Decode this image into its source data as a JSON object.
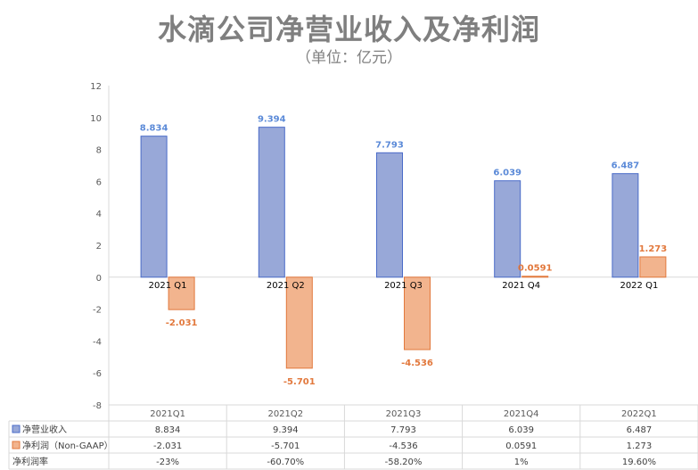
{
  "title": "水滴公司净营业收入及净利润",
  "subtitle": "（单位：亿元）",
  "colors": {
    "revenue_fill": "#98a8d8",
    "revenue_stroke": "#4a6bc8",
    "revenue_label": "#5b8ad8",
    "profit_fill": "#f2b48e",
    "profit_stroke": "#e2783c",
    "profit_label": "#e2783c"
  },
  "chart_data": {
    "type": "bar",
    "categories": [
      "2021 Q1",
      "2021 Q2",
      "2021 Q3",
      "2021 Q4",
      "2022 Q1"
    ],
    "series": [
      {
        "name": "净营业收入",
        "values": [
          8.834,
          9.394,
          7.793,
          6.039,
          6.487
        ],
        "labels": [
          "8.834",
          "9.394",
          "7.793",
          "6.039",
          "6.487"
        ]
      },
      {
        "name": "净利润（Non-GAAP）",
        "values": [
          -2.031,
          -5.701,
          -4.536,
          0.0591,
          1.273
        ],
        "labels": [
          "-2.031",
          "-5.701",
          "-4.536",
          "0.0591",
          "1.273"
        ]
      }
    ],
    "ylim": [
      -8,
      12
    ],
    "yticks": [
      12,
      10,
      8,
      6,
      4,
      2,
      0,
      -2,
      -4,
      -6,
      -8
    ],
    "grid": false,
    "legend": "data-table",
    "table": {
      "headers": [
        "2021Q1",
        "2021Q2",
        "2021Q3",
        "2021Q4",
        "2022Q1"
      ],
      "rows": [
        {
          "name": "净营业收入",
          "cells": [
            "8.834",
            "9.394",
            "7.793",
            "6.039",
            "6.487"
          ]
        },
        {
          "name": "净利润（Non-GAAP）",
          "cells": [
            "-2.031",
            "-5.701",
            "-4.536",
            "0.0591",
            "1.273"
          ]
        },
        {
          "name": "净利润率",
          "cells": [
            "-23%",
            "-60.70%",
            "-58.20%",
            "1%",
            "19.60%"
          ]
        }
      ]
    }
  }
}
